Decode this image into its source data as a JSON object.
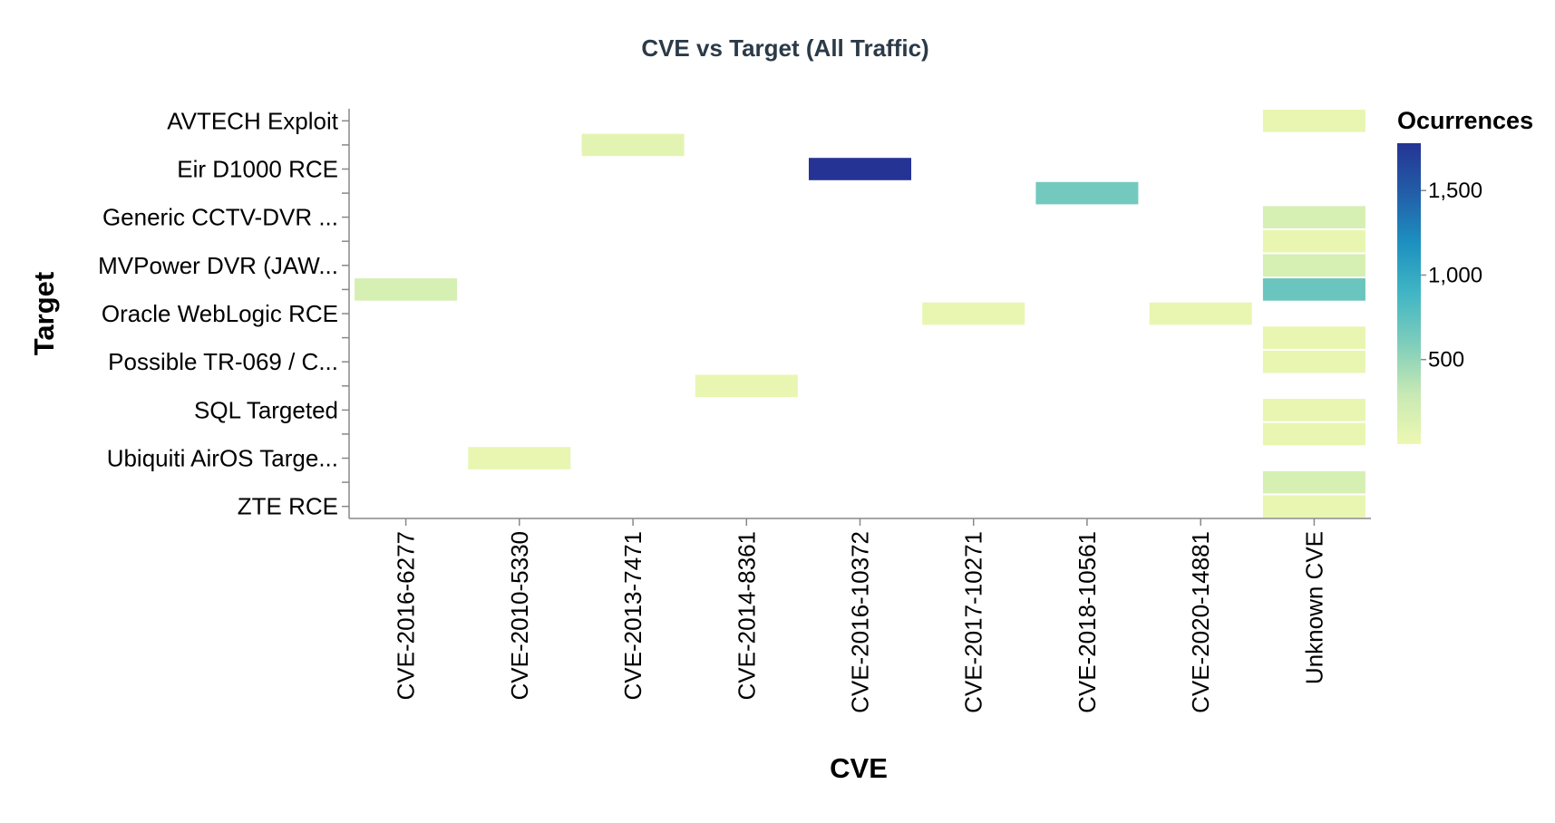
{
  "chart_data": {
    "type": "heatmap",
    "title": "CVE vs Target (All Traffic)",
    "xlabel": "CVE",
    "ylabel": "Target",
    "x_categories": [
      "CVE-2016-6277",
      "CVE-2010-5330",
      "CVE-2013-7471",
      "CVE-2014-8361",
      "CVE-2016-10372",
      "CVE-2017-10271",
      "CVE-2018-10561",
      "CVE-2020-14881",
      "Unknown CVE"
    ],
    "y_rows": [
      "AVTECH Exploit",
      "",
      "Eir D1000 RCE",
      "",
      "Generic CCTV-DVR ...",
      "",
      "MVPower DVR (JAW...",
      "",
      "Oracle WebLogic RCE",
      "",
      "Possible TR-069 / C...",
      "",
      "SQL Targeted",
      "",
      "Ubiquiti AirOS Targe...",
      "",
      "ZTE RCE"
    ],
    "cells": [
      {
        "x": "Unknown CVE",
        "row": 0,
        "value": 40
      },
      {
        "x": "CVE-2013-7471",
        "row": 1,
        "value": 80
      },
      {
        "x": "CVE-2016-10372",
        "row": 2,
        "value": 1780
      },
      {
        "x": "CVE-2018-10561",
        "row": 3,
        "value": 650
      },
      {
        "x": "Unknown CVE",
        "row": 4,
        "value": 180
      },
      {
        "x": "Unknown CVE",
        "row": 5,
        "value": 40
      },
      {
        "x": "Unknown CVE",
        "row": 6,
        "value": 180
      },
      {
        "x": "CVE-2016-6277",
        "row": 7,
        "value": 180
      },
      {
        "x": "Unknown CVE",
        "row": 7,
        "value": 700
      },
      {
        "x": "CVE-2017-10271",
        "row": 8,
        "value": 40
      },
      {
        "x": "CVE-2020-14881",
        "row": 8,
        "value": 40
      },
      {
        "x": "Unknown CVE",
        "row": 9,
        "value": 40
      },
      {
        "x": "Unknown CVE",
        "row": 10,
        "value": 40
      },
      {
        "x": "CVE-2014-8361",
        "row": 11,
        "value": 40
      },
      {
        "x": "Unknown CVE",
        "row": 12,
        "value": 40
      },
      {
        "x": "Unknown CVE",
        "row": 13,
        "value": 40
      },
      {
        "x": "CVE-2010-5330",
        "row": 14,
        "value": 40
      },
      {
        "x": "Unknown CVE",
        "row": 15,
        "value": 180
      },
      {
        "x": "Unknown CVE",
        "row": 16,
        "value": 40
      }
    ],
    "legend": {
      "title": "Ocurrences",
      "domain": [
        0,
        1780
      ],
      "ticks": [
        500,
        1000,
        1500
      ],
      "tick_labels": [
        "500",
        "1,000",
        "1,500"
      ],
      "placement": "right"
    },
    "colormap": [
      "#edf8b1",
      "#c7e9b4",
      "#7fcdbb",
      "#41b6c4",
      "#1d91c0",
      "#225ea8",
      "#253494"
    ]
  }
}
